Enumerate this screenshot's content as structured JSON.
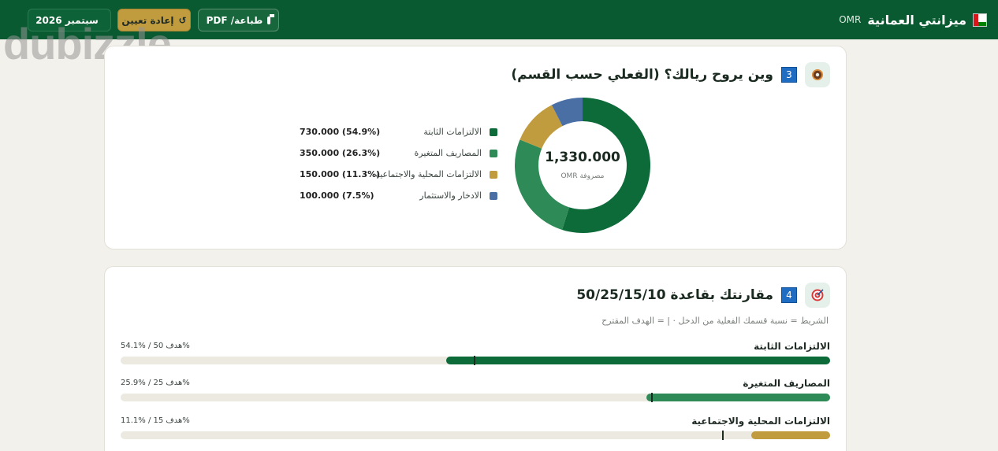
{
  "app": {
    "title": "ميزانتي العمانية",
    "currency": "OMR",
    "watermark": "dubizzle",
    "buttons": {
      "print": "طباعة/ PDF",
      "reset": "إعادة تعيين",
      "month": "سبتمبر 2026"
    },
    "icons": {
      "flag": "oman-flag-icon",
      "print": "printer-icon",
      "reset": "reset-arrow-icon",
      "month": "calendar-icon"
    },
    "colors": {
      "topbar": "#0a5a31",
      "fixed": "#0d6b3a",
      "variable": "#2e8b57",
      "social": "#c19c3e",
      "savings": "#4a6fa5"
    }
  },
  "spending": {
    "number": "3",
    "title": "وين يروح ريالك؟ (الفعلي حسب القسم)",
    "emoji_icon": "donut-icon",
    "total": "1,330.000",
    "total_sub": "OMR مصروفة",
    "legend": [
      {
        "name": "الالتزامات الثابتة",
        "value": "730.000 (54.9%)",
        "color": "#0d6b3a"
      },
      {
        "name": "المصاريف المتغيرة",
        "value": "350.000 (26.3%)",
        "color": "#2e8b57"
      },
      {
        "name": "الالتزامات المحلية والاجتماعية",
        "value": "150.000 (11.3%)",
        "color": "#c19c3e"
      },
      {
        "name": "الادخار والاستثمار",
        "value": "100.000 (7.5%)",
        "color": "#4a6fa5"
      }
    ],
    "slices": [
      730,
      350,
      150,
      100
    ]
  },
  "comparison": {
    "number": "4",
    "title": "مقارنتك بقاعدة 50/25/15/10",
    "emoji_icon": "target-icon",
    "subtitle": "الشريط = نسبة قسمك الفعلية من الدخل · | = الهدف المقترح",
    "rows": [
      {
        "label": "الالتزامات الثابتة",
        "stat": "54.1% / 50 هدف%",
        "actual": 54.1,
        "target": 50,
        "color": "#0d6b3a"
      },
      {
        "label": "المصاريف المتغيرة",
        "stat": "25.9% / 25 هدف%",
        "actual": 25.9,
        "target": 25,
        "color": "#2e8b57"
      },
      {
        "label": "الالتزامات المحلية والاجتماعية",
        "stat": "11.1% / 15 هدف%",
        "actual": 11.1,
        "target": 15,
        "color": "#c19c3e"
      }
    ]
  }
}
